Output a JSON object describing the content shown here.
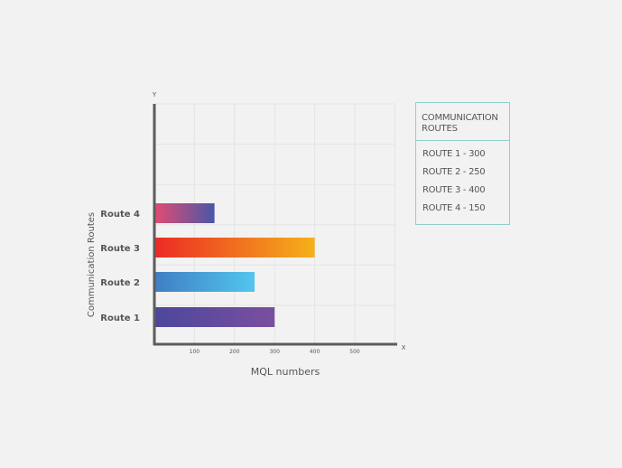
{
  "chart_data": {
    "type": "bar",
    "orientation": "horizontal",
    "categories": [
      "Route 1",
      "Route 2",
      "Route 3",
      "Route 4"
    ],
    "values": [
      300,
      250,
      400,
      150
    ],
    "xlabel": "MQL numbers",
    "ylabel": "Communication Routes",
    "x_axis_letter": "X",
    "y_axis_letter": "Y",
    "x_ticks": [
      "100",
      "200",
      "300",
      "400",
      "500"
    ],
    "xlim": [
      0,
      600
    ],
    "grid": true,
    "bar_gradients": [
      [
        "#4c479b",
        "#7a4fa0"
      ],
      [
        "#3f7ec3",
        "#52c6ee"
      ],
      [
        "#ec2a24",
        "#f5b11a"
      ],
      [
        "#e24c72",
        "#4a57a7"
      ]
    ],
    "legend": {
      "title": "COMMUNICATION ROUTES",
      "items": [
        "ROUTE 1 - 300",
        "ROUTE 2 - 250",
        "ROUTE 3 - 400",
        "ROUTE 4 - 150"
      ],
      "position": "right"
    }
  }
}
